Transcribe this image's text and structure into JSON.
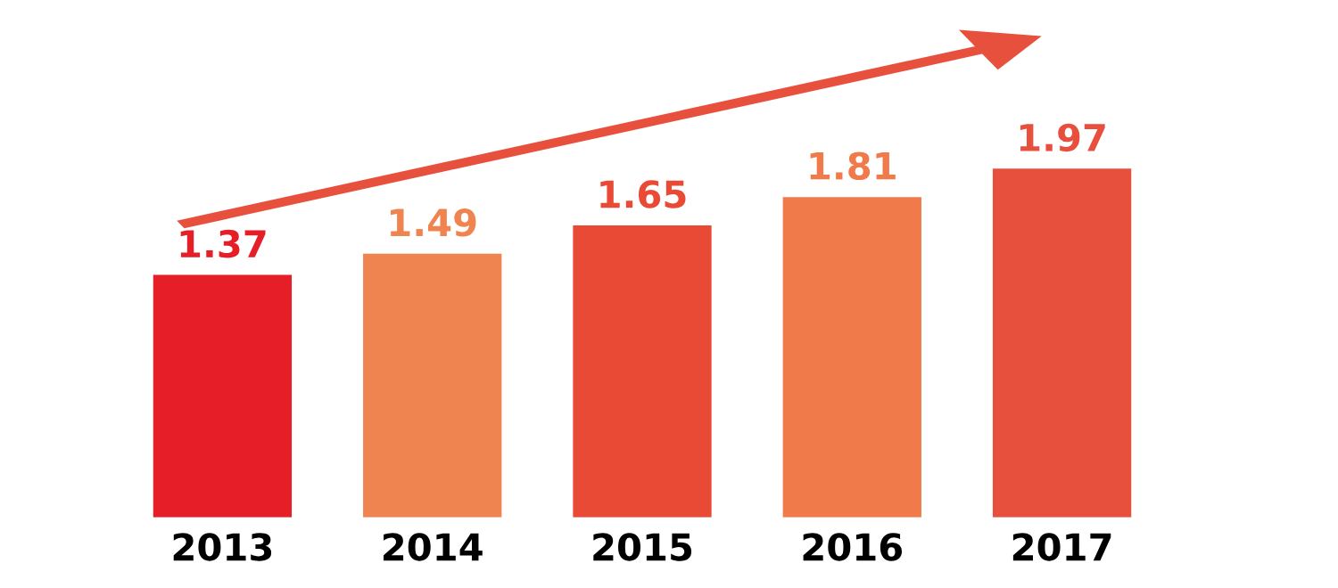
{
  "chart_data": {
    "type": "bar",
    "categories": [
      "2013",
      "2014",
      "2015",
      "2016",
      "2017"
    ],
    "values": [
      1.37,
      1.49,
      1.65,
      1.81,
      1.97
    ],
    "colors": [
      "#e61e28",
      "#ef8450",
      "#e84a35",
      "#f07a4a",
      "#e8503e"
    ],
    "data_labels": true,
    "grid": false,
    "legend": false
  }
}
